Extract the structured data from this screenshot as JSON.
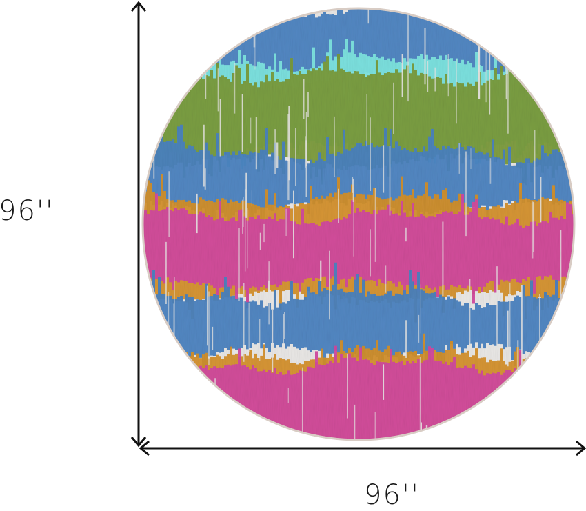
{
  "dimensions": {
    "height_label": "96''",
    "width_label": "96''"
  },
  "rug": {
    "shape": "round",
    "pattern": "ikat-stripes",
    "colors": {
      "background": "#e8e6e4",
      "blue": "#4a82c0",
      "green": "#7a9a3a",
      "aqua": "#7fe6e0",
      "orange": "#d4902a",
      "pink": "#d24aa0",
      "border": "#d8ccc4"
    }
  },
  "arrow_color": "#111111"
}
